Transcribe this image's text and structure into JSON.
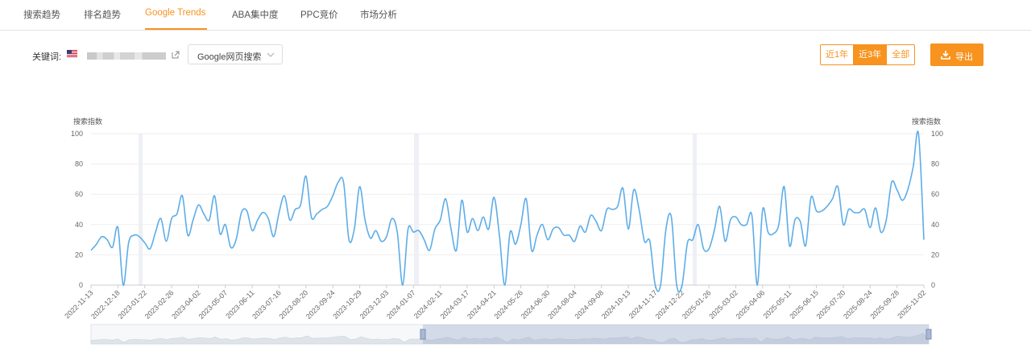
{
  "tabs": {
    "items": [
      "搜索趋势",
      "排名趋势",
      "Google Trends",
      "ABA集中度",
      "PPC竞价",
      "市场分析"
    ],
    "active": "Google Trends"
  },
  "filter": {
    "keyword_label": "关键词:",
    "source_select": "Google网页搜索"
  },
  "range_buttons": [
    "近1年",
    "近3年",
    "全部"
  ],
  "active_range": "近3年",
  "export_label": "导出",
  "colors": {
    "accent": "#f7931e",
    "line": "#5dade8"
  },
  "icons": [
    "us-flag-icon",
    "external-link-icon",
    "chevron-down-icon",
    "download-icon"
  ],
  "chart_data": {
    "type": "line",
    "ylabel_left": "搜索指数",
    "ylabel_right": "搜索指数",
    "ylim": [
      0,
      100
    ],
    "yticks": [
      0,
      20,
      40,
      60,
      80,
      100
    ],
    "grid": true,
    "xtick_labels": [
      "2022-11-13",
      "2022-12-18",
      "2023-01-22",
      "2023-02-26",
      "2023-04-02",
      "2023-05-07",
      "2023-06-11",
      "2023-07-16",
      "2023-08-20",
      "2023-09-24",
      "2023-10-29",
      "2023-12-03",
      "2024-01-07",
      "2024-02-11",
      "2024-03-17",
      "2024-04-21",
      "2024-05-26",
      "2024-06-30",
      "2024-08-04",
      "2024-09-08",
      "2024-10-13",
      "2024-11-17",
      "2024-12-22",
      "2025-01-26",
      "2025-03-02",
      "2025-04-06",
      "2025-05-11",
      "2025-06-15",
      "2025-07-20",
      "2025-08-24",
      "2025-09-28",
      "2025-11-02"
    ],
    "series": [
      {
        "values": [
          23,
          27,
          32,
          30,
          25,
          38,
          0,
          28,
          33,
          32,
          28,
          24,
          35,
          44,
          29,
          44,
          47,
          59,
          33,
          43,
          53,
          47,
          43,
          59,
          34,
          40,
          25,
          30,
          48,
          49,
          36,
          43,
          48,
          44,
          32,
          48,
          59,
          43,
          50,
          53,
          72,
          45,
          47,
          50,
          52,
          59,
          68,
          68,
          30,
          37,
          65,
          43,
          31,
          36,
          29,
          32,
          44,
          35,
          0,
          37,
          35,
          36,
          30,
          23,
          37,
          43,
          57,
          37,
          23,
          56,
          35,
          44,
          36,
          45,
          37,
          58,
          33,
          0,
          35,
          27,
          40,
          57,
          23,
          33,
          40,
          30,
          37,
          38,
          33,
          33,
          29,
          39,
          35,
          46,
          42,
          36,
          50,
          50,
          52,
          64,
          37,
          63,
          50,
          29,
          29,
          0,
          0,
          37,
          45,
          0,
          0,
          28,
          30,
          40,
          24,
          24,
          36,
          52,
          29,
          43,
          45,
          40,
          40,
          46,
          0,
          50,
          35,
          34,
          40,
          65,
          26,
          43,
          42,
          26,
          58,
          49,
          49,
          52,
          57,
          65,
          40,
          50,
          48,
          48,
          50,
          38,
          51,
          35,
          43,
          68,
          63,
          56,
          63,
          78,
          100,
          30
        ]
      }
    ]
  }
}
